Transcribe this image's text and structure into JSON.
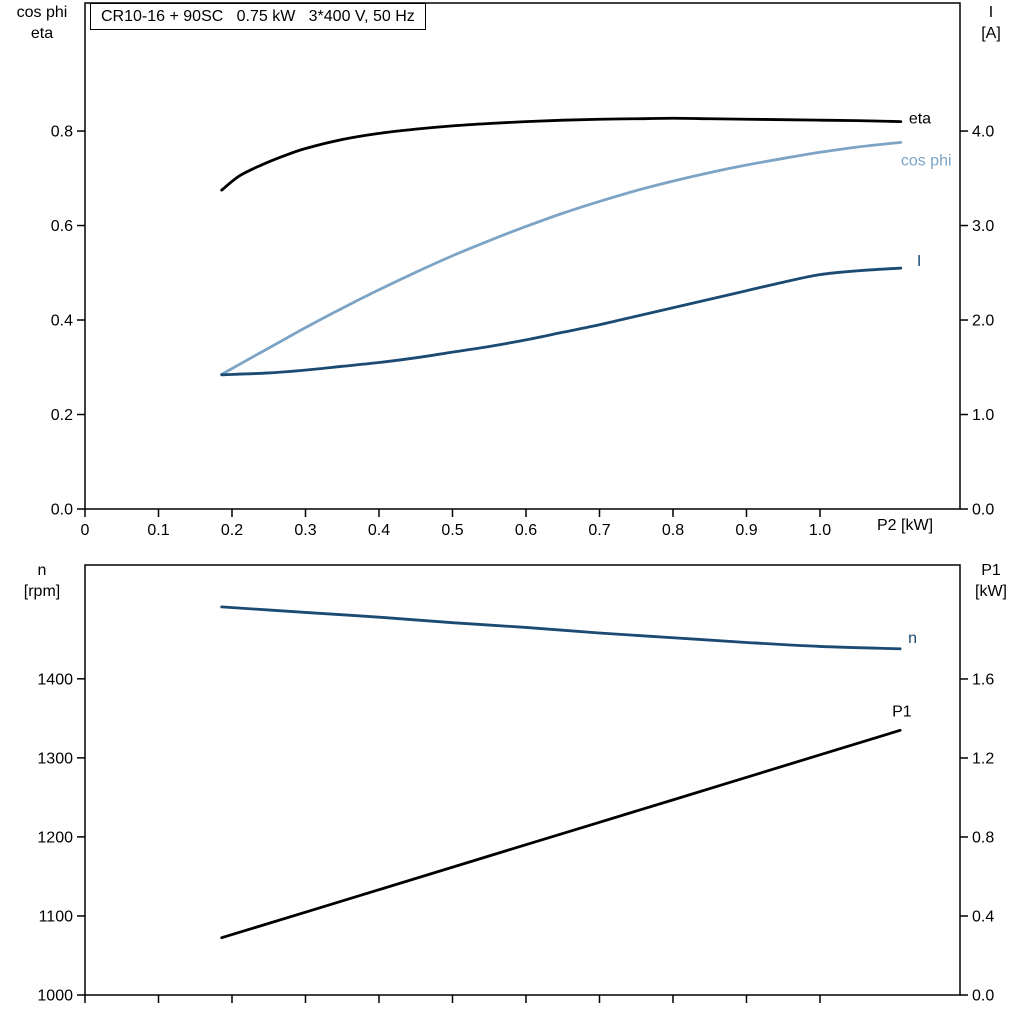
{
  "colors": {
    "black": "#000000",
    "light_blue": "#7da4c5",
    "dark_blue": "#1b4a73",
    "frame": "#000000",
    "background": "#ffffff"
  },
  "chart_data": [
    {
      "type": "line",
      "title": "CR10-16 + 90SC   0.75 kW   3*400 V, 50 Hz",
      "grid": false,
      "legend_position": "end-of-line-labels",
      "x_axis": {
        "label": "P2 [kW]",
        "min": 0,
        "max": 1.1905,
        "ticks": [
          0,
          0.1,
          0.2,
          0.3,
          0.4,
          0.5,
          0.6,
          0.7,
          0.8,
          0.9,
          1.0
        ],
        "tick_labels": [
          "0",
          "0.1",
          "0.2",
          "0.3",
          "0.4",
          "0.5",
          "0.6",
          "0.7",
          "0.8",
          "0.9",
          "1.0"
        ]
      },
      "y_left": {
        "label_lines": [
          "cos phi",
          "eta"
        ],
        "min": 0,
        "max": 1.071,
        "ticks": [
          0,
          0.2,
          0.4,
          0.6,
          0.8
        ],
        "tick_labels": [
          "0.0",
          "0.2",
          "0.4",
          "0.6",
          "0.8"
        ]
      },
      "y_right": {
        "label_lines": [
          "I",
          "[A]"
        ],
        "min": 0,
        "max": 5.355,
        "ticks": [
          0,
          1,
          2,
          3,
          4
        ],
        "tick_labels": [
          "0.0",
          "1.0",
          "2.0",
          "3.0",
          "4.0"
        ]
      },
      "series": [
        {
          "name": "eta",
          "label": "eta",
          "axis": "left",
          "color": "#000000",
          "label_color": "#000000",
          "label_offset": [
            8,
            2
          ],
          "points": [
            [
              0.186,
              0.675
            ],
            [
              0.21,
              0.705
            ],
            [
              0.24,
              0.728
            ],
            [
              0.27,
              0.747
            ],
            [
              0.3,
              0.763
            ],
            [
              0.35,
              0.782
            ],
            [
              0.4,
              0.795
            ],
            [
              0.45,
              0.804
            ],
            [
              0.5,
              0.811
            ],
            [
              0.55,
              0.816
            ],
            [
              0.6,
              0.82
            ],
            [
              0.65,
              0.823
            ],
            [
              0.7,
              0.825
            ],
            [
              0.75,
              0.826
            ],
            [
              0.8,
              0.827
            ],
            [
              0.85,
              0.826
            ],
            [
              0.9,
              0.825
            ],
            [
              0.95,
              0.824
            ],
            [
              1.0,
              0.823
            ],
            [
              1.05,
              0.822
            ],
            [
              1.11,
              0.82
            ]
          ]
        },
        {
          "name": "cos-phi",
          "label": "cos phi",
          "axis": "left",
          "color": "#7da4c5",
          "label_color": "#7da4c5",
          "label_offset": [
            0,
            23
          ],
          "points": [
            [
              0.186,
              0.285
            ],
            [
              0.21,
              0.306
            ],
            [
              0.24,
              0.332
            ],
            [
              0.27,
              0.358
            ],
            [
              0.3,
              0.384
            ],
            [
              0.35,
              0.425
            ],
            [
              0.4,
              0.464
            ],
            [
              0.45,
              0.501
            ],
            [
              0.5,
              0.536
            ],
            [
              0.55,
              0.568
            ],
            [
              0.6,
              0.598
            ],
            [
              0.65,
              0.626
            ],
            [
              0.7,
              0.651
            ],
            [
              0.75,
              0.674
            ],
            [
              0.8,
              0.694
            ],
            [
              0.85,
              0.712
            ],
            [
              0.9,
              0.728
            ],
            [
              0.95,
              0.742
            ],
            [
              1.0,
              0.755
            ],
            [
              1.05,
              0.766
            ],
            [
              1.11,
              0.776
            ]
          ]
        },
        {
          "name": "current",
          "label": "I",
          "axis": "right",
          "color": "#1b4a73",
          "label_color": "#1b4a73",
          "label_offset": [
            16,
            -2
          ],
          "points": [
            [
              0.186,
              1.42
            ],
            [
              0.25,
              1.44
            ],
            [
              0.3,
              1.47
            ],
            [
              0.35,
              1.51
            ],
            [
              0.4,
              1.55
            ],
            [
              0.45,
              1.6
            ],
            [
              0.5,
              1.66
            ],
            [
              0.55,
              1.72
            ],
            [
              0.6,
              1.79
            ],
            [
              0.65,
              1.87
            ],
            [
              0.7,
              1.95
            ],
            [
              0.75,
              2.04
            ],
            [
              0.8,
              2.13
            ],
            [
              0.85,
              2.22
            ],
            [
              0.9,
              2.31
            ],
            [
              0.95,
              2.4
            ],
            [
              1.0,
              2.48
            ],
            [
              1.05,
              2.52
            ],
            [
              1.11,
              2.55
            ]
          ]
        }
      ]
    },
    {
      "type": "line",
      "title": "",
      "grid": false,
      "legend_position": "end-of-line-labels",
      "x_axis": {
        "label": "",
        "min": 0,
        "max": 1.1905,
        "ticks": [
          0,
          0.1,
          0.2,
          0.3,
          0.4,
          0.5,
          0.6,
          0.7,
          0.8,
          0.9,
          1.0
        ],
        "tick_labels": []
      },
      "y_left": {
        "label_lines": [
          "n",
          "[rpm]"
        ],
        "min": 1000,
        "max": 1544,
        "ticks": [
          1000,
          1100,
          1200,
          1300,
          1400
        ],
        "tick_labels": [
          "1000",
          "1100",
          "1200",
          "1300",
          "1400"
        ]
      },
      "y_right": {
        "label_lines": [
          "P1",
          "[kW]"
        ],
        "min": 0,
        "max": 2.177,
        "ticks": [
          0,
          0.4,
          0.8,
          1.2,
          1.6
        ],
        "tick_labels": [
          "0.0",
          "0.4",
          "0.8",
          "1.2",
          "1.6"
        ]
      },
      "series": [
        {
          "name": "n",
          "label": "n",
          "axis": "left",
          "color": "#1b4a73",
          "label_color": "#1b4a73",
          "label_offset": [
            8,
            -6
          ],
          "points": [
            [
              0.186,
              1491
            ],
            [
              0.3,
              1484
            ],
            [
              0.4,
              1478
            ],
            [
              0.5,
              1471
            ],
            [
              0.6,
              1465
            ],
            [
              0.7,
              1458
            ],
            [
              0.8,
              1452
            ],
            [
              0.9,
              1446
            ],
            [
              1.0,
              1441
            ],
            [
              1.109,
              1438
            ]
          ]
        },
        {
          "name": "P1",
          "label": "P1",
          "axis": "right",
          "color": "#000000",
          "label_color": "#000000",
          "label_offset": [
            -8,
            -14
          ],
          "points": [
            [
              0.186,
              0.29
            ],
            [
              0.4,
              0.533
            ],
            [
              0.6,
              0.761
            ],
            [
              0.8,
              0.988
            ],
            [
              1.0,
              1.216
            ],
            [
              1.109,
              1.34
            ]
          ]
        }
      ]
    }
  ]
}
